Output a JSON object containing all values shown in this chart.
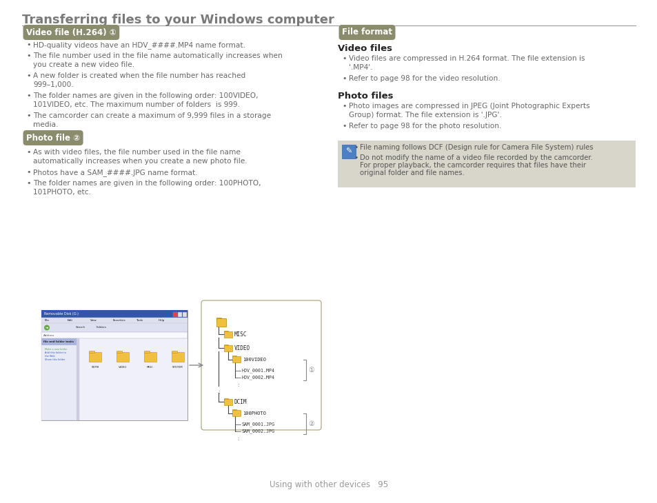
{
  "title": "Transferring files to your Windows computer",
  "title_color": "#7a7a7a",
  "title_fontsize": 13,
  "bg_color": "#ffffff",
  "separator_color": "#999999",
  "left_section1_header": "Video file (H.264) ①",
  "left_section1_header_bg": "#8b8b6e",
  "left_section1_header_color": "#ffffff",
  "left_section1_bullets": [
    "HD-quality videos have an HDV_####.MP4 name format.",
    "The file number used in the file name automatically increases when\nyou create a new video file.",
    "A new folder is created when the file number has reached\n999–1,000.",
    "The folder names are given in the following order: 100VIDEO,\n101VIDEO, etc. The maximum number of folders  is 999.",
    "The camcorder can create a maximum of 9,999 files in a storage\nmedia."
  ],
  "left_section2_header": "Photo file ②",
  "left_section2_header_bg": "#8b8b6e",
  "left_section2_header_color": "#ffffff",
  "left_section2_bullets": [
    "As with video files, the file number used in the file name\nautomatically increases when you create a new photo file.",
    "Photos have a SAM_####.JPG name format.",
    "The folder names are given in the following order: 100PHOTO,\n101PHOTO, etc."
  ],
  "right_section1_header": "File format",
  "right_section1_header_bg": "#8b8b6e",
  "right_section1_header_color": "#ffffff",
  "right_sub1_title": "Video files",
  "right_sub1_bullets": [
    "Video files are compressed in H.264 format. The file extension is\n'.MP4'.",
    "Refer to page 98 for the video resolution."
  ],
  "right_sub2_title": "Photo files",
  "right_sub2_bullets": [
    "Photo images are compressed in JPEG (Joint Photographic Experts\nGroup) format. The file extension is '.JPG'.",
    "Refer to page 98 for the photo resolution."
  ],
  "note_bg": "#d8d5ca",
  "note_bullets": [
    "File naming follows DCF (Design rule for Camera File System) rules",
    "Do not modify the name of a video file recorded by the camcorder.\nFor proper playback, the camcorder requires that files have their\noriginal folder and file names."
  ],
  "footer_text": "Using with other devices   95",
  "footer_color": "#999999",
  "diagram_label1": "①",
  "diagram_label2": "②",
  "tree_folders": [
    "MISC",
    "VIDEO",
    "100VIDEO",
    "DCIM",
    "100PHOTO"
  ],
  "tree_files1": [
    "HDV_0001.MP4",
    "HDV_0002.MP4"
  ],
  "tree_files2": [
    "SAM_0001.JPG",
    "SAM_0002.JPG"
  ],
  "explorer_folders": [
    "SDFM",
    "VIDEO",
    "MISC",
    "SYSTEM"
  ],
  "explorer_nav": [
    "file and folder tasks",
    "Make a new folder",
    "Publish this folder\nto the Web",
    "Share this folder"
  ]
}
